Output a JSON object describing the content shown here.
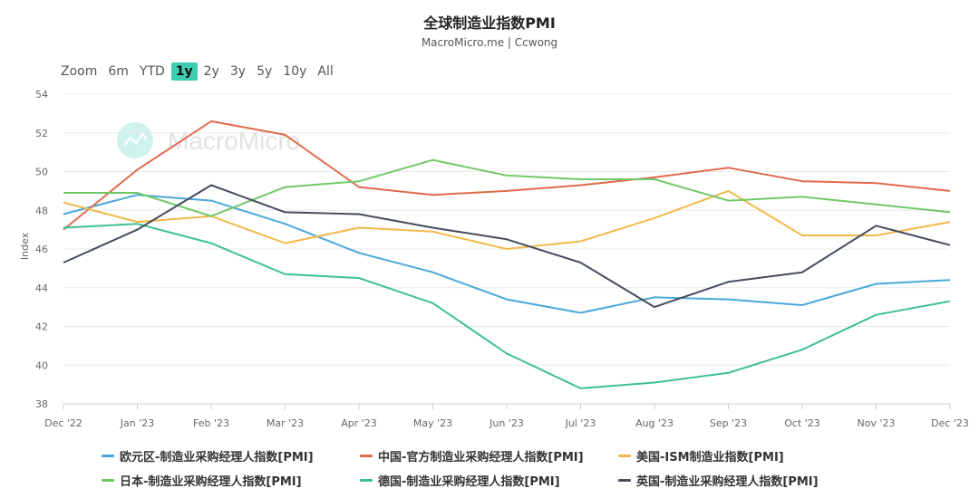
{
  "chart_data": {
    "type": "line",
    "title": "全球制造业指数PMI",
    "subtitle": "MacroMicro.me | Ccwong",
    "watermark": "MacroMicro",
    "ylabel": "Index",
    "ylim": [
      38,
      54
    ],
    "yticks": [
      38,
      40,
      42,
      44,
      46,
      48,
      50,
      52,
      54
    ],
    "categories": [
      "Dec '22",
      "Jan '23",
      "Feb '23",
      "Mar '23",
      "Apr '23",
      "May '23",
      "Jun '23",
      "Jul '23",
      "Aug '23",
      "Sep '23",
      "Oct '23",
      "Nov '23",
      "Dec '23"
    ],
    "series": [
      {
        "name": "欧元区-制造业采购经理人指数[PMI]",
        "color": "#4aa8d8",
        "values": [
          47.8,
          48.8,
          48.5,
          47.3,
          45.8,
          44.8,
          43.4,
          42.7,
          43.5,
          43.4,
          43.1,
          44.2,
          44.4
        ]
      },
      {
        "name": "中国-官方制造业采购经理人指数[PMI]",
        "color": "#e06a4c",
        "values": [
          47.0,
          50.1,
          52.6,
          51.9,
          49.2,
          48.8,
          49.0,
          49.3,
          49.7,
          50.2,
          49.5,
          49.4,
          49.0
        ]
      },
      {
        "name": "美国-ISM制造业指数[PMI]",
        "color": "#f2b94a",
        "values": [
          48.4,
          47.4,
          47.7,
          46.3,
          47.1,
          46.9,
          46.0,
          46.4,
          47.6,
          49.0,
          46.7,
          46.7,
          47.4
        ]
      },
      {
        "name": "日本-制造业采购经理人指数[PMI]",
        "color": "#72c867",
        "values": [
          48.9,
          48.9,
          47.7,
          49.2,
          49.5,
          50.6,
          49.8,
          49.6,
          49.6,
          48.5,
          48.7,
          48.3,
          47.9
        ]
      },
      {
        "name": "德国-制造业采购经理人指数[PMI]",
        "color": "#3ebf95",
        "values": [
          47.1,
          47.3,
          46.3,
          44.7,
          44.5,
          43.2,
          40.6,
          38.8,
          39.1,
          39.6,
          40.8,
          42.6,
          43.3
        ]
      },
      {
        "name": "英国-制造业采购经理人指数[PMI]",
        "color": "#454d5c",
        "values": [
          45.3,
          47.0,
          49.3,
          47.9,
          47.8,
          47.1,
          46.5,
          45.3,
          43.0,
          44.3,
          44.8,
          47.2,
          46.2
        ]
      }
    ]
  },
  "range_selector": {
    "zoom_label": "Zoom",
    "options": [
      "6m",
      "YTD",
      "1y",
      "2y",
      "3y",
      "5y",
      "10y",
      "All"
    ],
    "active": "1y"
  }
}
